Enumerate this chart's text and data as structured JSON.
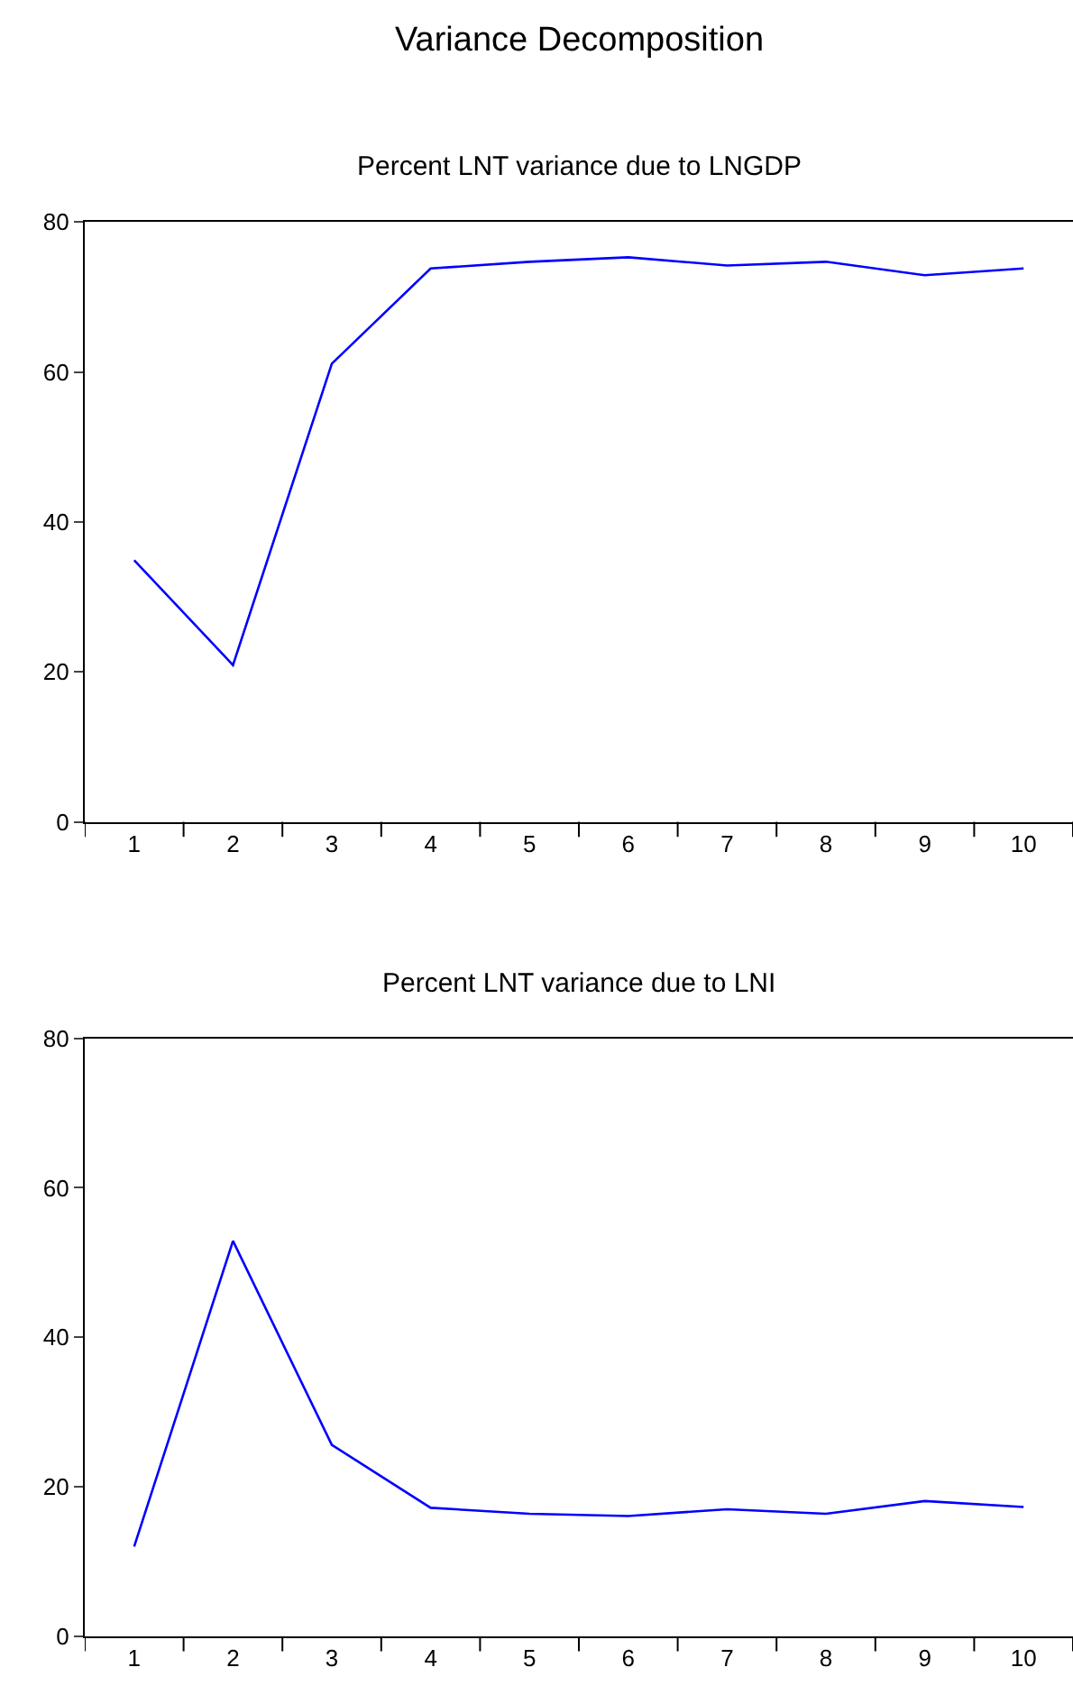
{
  "chart_data": [
    {
      "type": "line",
      "title": "Variance Decomposition",
      "subtitle": "Percent LNT variance due to LNGDP",
      "categories": [
        "1",
        "2",
        "3",
        "4",
        "5",
        "6",
        "7",
        "8",
        "9",
        "10"
      ],
      "series": [
        {
          "color": "#0000ff",
          "values": [
            34.9,
            20.9,
            61.1,
            73.8,
            74.7,
            75.3,
            74.2,
            74.7,
            72.9,
            73.8
          ]
        }
      ],
      "ylim": [
        0,
        80
      ],
      "yticks": [
        0,
        20,
        40,
        60,
        80
      ],
      "marker": "none",
      "line_style": "solid"
    },
    {
      "type": "line",
      "title": "Percent LNT variance due to LNI",
      "categories": [
        "1",
        "2",
        "3",
        "4",
        "5",
        "6",
        "7",
        "8",
        "9",
        "10"
      ],
      "series": [
        {
          "color": "#0000ff",
          "values": [
            12.0,
            52.9,
            25.6,
            17.2,
            16.4,
            16.1,
            17.0,
            16.4,
            18.1,
            17.3
          ]
        }
      ],
      "ylim": [
        0,
        80
      ],
      "yticks": [
        0,
        20,
        40,
        60,
        80
      ],
      "marker": "none",
      "line_style": "solid"
    }
  ]
}
